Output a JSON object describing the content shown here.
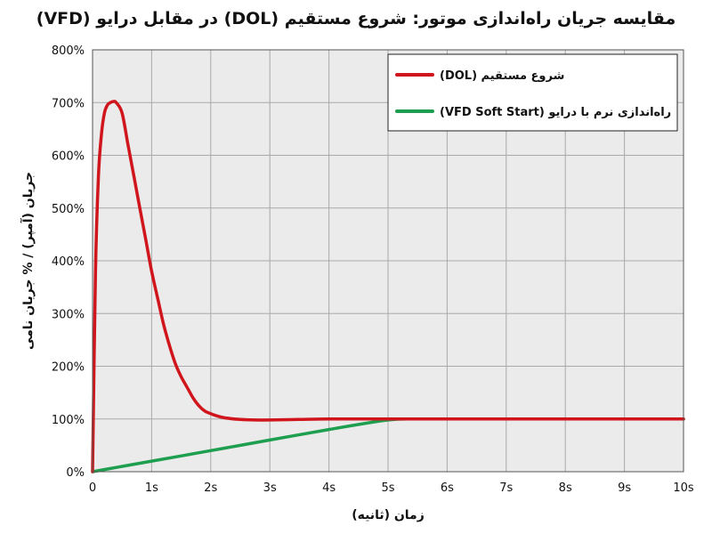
{
  "title": "مقایسه جریان راه‌اندازی موتور: شروع مستقیم (DOL) در مقابل درایو (VFD)",
  "chart_data": {
    "type": "line",
    "xlabel": "زمان (ثانیه)",
    "ylabel": "جریان (آمپر) / % جریان نامی",
    "xlim": [
      0,
      10
    ],
    "ylim": [
      0,
      800
    ],
    "x_ticks": [
      "0",
      "1s",
      "2s",
      "3s",
      "4s",
      "5s",
      "6s",
      "7s",
      "8s",
      "9s",
      "10s"
    ],
    "y_ticks": [
      "0%",
      "100%",
      "200%",
      "300%",
      "400%",
      "500%",
      "600%",
      "700%",
      "800%"
    ],
    "grid": true,
    "legend_position": "top-right",
    "series": [
      {
        "name": "شروع مستقیم (DOL)",
        "color": "#d0161c",
        "x": [
          0,
          0.05,
          0.1,
          0.15,
          0.2,
          0.25,
          0.3,
          0.35,
          0.4,
          0.5,
          0.6,
          0.7,
          0.8,
          0.9,
          1.0,
          1.1,
          1.2,
          1.3,
          1.4,
          1.5,
          1.6,
          1.7,
          1.8,
          1.9,
          2.0,
          2.1,
          2.25,
          2.5,
          2.75,
          3.0,
          3.5,
          4.0,
          4.5,
          5.0,
          5.5,
          6.0,
          7.0,
          8.0,
          9.0,
          10.0
        ],
        "y": [
          0,
          380,
          560,
          640,
          680,
          695,
          700,
          702,
          700,
          680,
          620,
          560,
          500,
          440,
          380,
          330,
          280,
          240,
          205,
          180,
          160,
          140,
          125,
          115,
          110,
          106,
          102,
          99,
          98,
          98,
          99,
          100,
          100,
          100,
          100,
          100,
          100,
          100,
          100,
          100
        ]
      },
      {
        "name": "راه‌اندازی نرم با درایو (VFD Soft Start)",
        "color": "#1e9e4f",
        "x": [
          0,
          1,
          2,
          3,
          4,
          5,
          5.5,
          6,
          7,
          8,
          9,
          10
        ],
        "y": [
          0,
          20,
          40,
          60,
          80,
          98,
          100,
          100,
          100,
          100,
          100,
          100
        ]
      }
    ]
  }
}
